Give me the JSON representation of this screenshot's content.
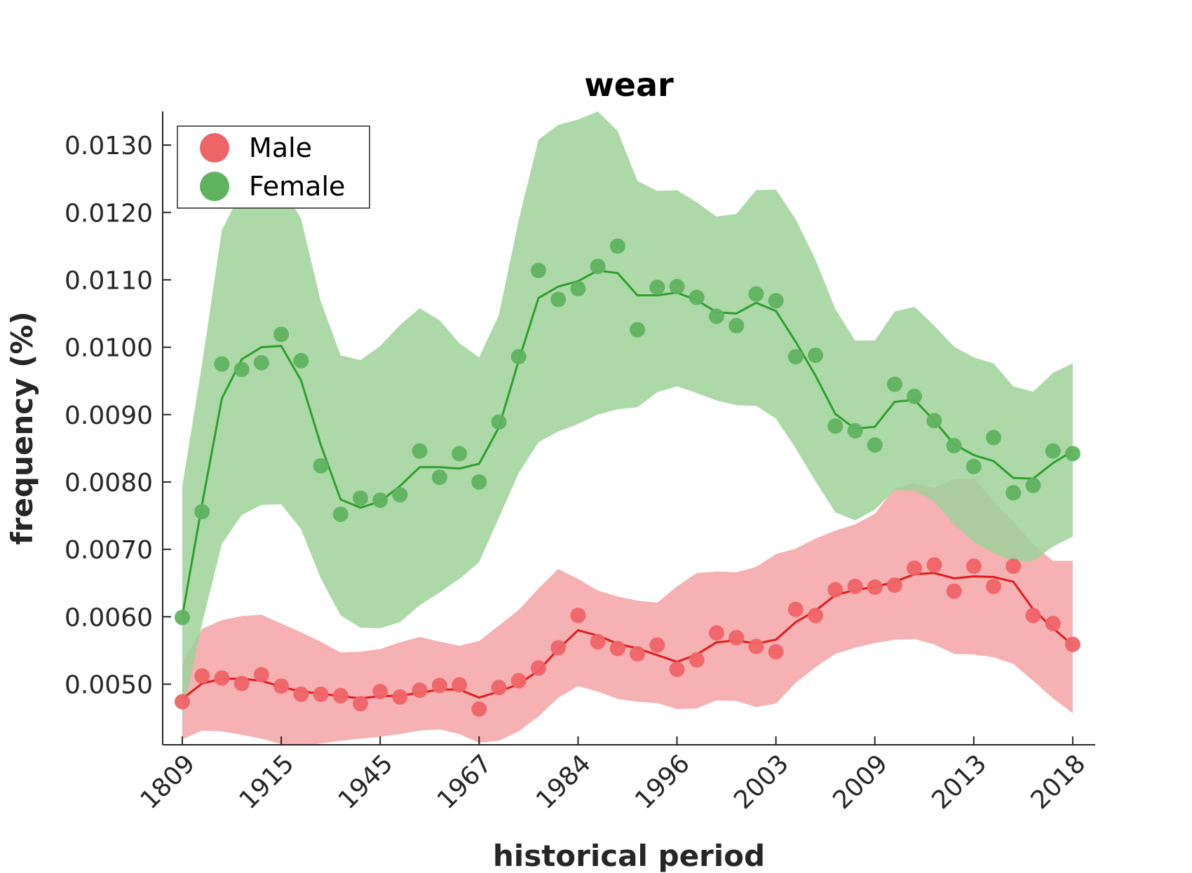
{
  "chart_data": {
    "type": "line",
    "title": "wear",
    "xlabel": "historical period",
    "ylabel": "frequency (%)",
    "ylim": [
      0.0041,
      0.0135
    ],
    "yticks": [
      "0.0050",
      "0.0060",
      "0.0070",
      "0.0080",
      "0.0090",
      "0.0100",
      "0.0110",
      "0.0120",
      "0.0130"
    ],
    "ytick_values": [
      0.005,
      0.006,
      0.007,
      0.008,
      0.009,
      0.01,
      0.011,
      0.012,
      0.013
    ],
    "xtick_labels": [
      "1809",
      "1915",
      "1945",
      "1967",
      "1984",
      "1996",
      "2003",
      "2009",
      "2013",
      "2018"
    ],
    "xtick_index": [
      0,
      5,
      10,
      15,
      20,
      25,
      30,
      35,
      40,
      45
    ],
    "n_points": 46,
    "legend_position": "top-left",
    "grid": false,
    "series": [
      {
        "name": "Male",
        "color": "#e41a1c",
        "marker_color": "#ef6467",
        "band_color": "#f4a3a4",
        "points": [
          0.00474,
          0.00512,
          0.00509,
          0.00501,
          0.00514,
          0.00497,
          0.00485,
          0.00485,
          0.00483,
          0.00471,
          0.00489,
          0.00481,
          0.00491,
          0.00498,
          0.00499,
          0.00463,
          0.00495,
          0.00505,
          0.00524,
          0.00554,
          0.00602,
          0.00563,
          0.00553,
          0.00545,
          0.00558,
          0.00522,
          0.00536,
          0.00576,
          0.00569,
          0.00556,
          0.00548,
          0.00611,
          0.00602,
          0.0064,
          0.00645,
          0.00644,
          0.00647,
          0.00672,
          0.00677,
          0.00638,
          0.00675,
          0.00645,
          0.00675,
          0.00602,
          0.0059,
          0.00559
        ],
        "smooth": [
          0.00478,
          0.00501,
          0.00508,
          0.00508,
          0.00505,
          0.00496,
          0.00489,
          0.00486,
          0.00482,
          0.00479,
          0.00482,
          0.00483,
          0.00487,
          0.00492,
          0.00492,
          0.0048,
          0.00489,
          0.005,
          0.0052,
          0.00552,
          0.0058,
          0.00572,
          0.0056,
          0.00553,
          0.00543,
          0.00533,
          0.00544,
          0.00562,
          0.00565,
          0.0056,
          0.00566,
          0.00592,
          0.00609,
          0.00632,
          0.0064,
          0.00644,
          0.00652,
          0.00663,
          0.00665,
          0.00657,
          0.0066,
          0.00659,
          0.00652,
          0.00611,
          0.00583,
          0.00558
        ],
        "lower": [
          0.00418,
          0.00431,
          0.0043,
          0.00425,
          0.00419,
          0.00411,
          0.00409,
          0.00412,
          0.00416,
          0.00419,
          0.00422,
          0.00426,
          0.00431,
          0.00433,
          0.00426,
          0.00413,
          0.00416,
          0.0043,
          0.00452,
          0.0048,
          0.00497,
          0.00489,
          0.00478,
          0.00474,
          0.00472,
          0.00463,
          0.00464,
          0.00476,
          0.00475,
          0.00466,
          0.00471,
          0.00502,
          0.00525,
          0.00545,
          0.00554,
          0.00561,
          0.00566,
          0.00567,
          0.00559,
          0.00545,
          0.00544,
          0.0054,
          0.0053,
          0.00505,
          0.00479,
          0.00457
        ],
        "upper": [
          0.00532,
          0.00582,
          0.00595,
          0.00601,
          0.00603,
          0.0059,
          0.00577,
          0.00563,
          0.00547,
          0.00548,
          0.00552,
          0.00562,
          0.0057,
          0.00563,
          0.00557,
          0.00564,
          0.00587,
          0.0061,
          0.00642,
          0.00671,
          0.00656,
          0.00639,
          0.0063,
          0.00624,
          0.00621,
          0.00645,
          0.00665,
          0.00667,
          0.00666,
          0.00674,
          0.00693,
          0.00701,
          0.00716,
          0.00728,
          0.00737,
          0.00753,
          0.00791,
          0.00798,
          0.00791,
          0.00804,
          0.00806,
          0.00772,
          0.00741,
          0.00708,
          0.00683,
          0.00683
        ]
      },
      {
        "name": "Female",
        "color": "#2ca02c",
        "marker_color": "#5fb35f",
        "band_color": "#9fd29a",
        "points": [
          0.00599,
          0.00756,
          0.00975,
          0.00967,
          0.00977,
          0.01019,
          0.0098,
          0.00824,
          0.00752,
          0.00776,
          0.00773,
          0.00781,
          0.00846,
          0.00807,
          0.00842,
          0.008,
          0.00889,
          0.00986,
          0.01114,
          0.01071,
          0.01087,
          0.0112,
          0.0115,
          0.01026,
          0.01089,
          0.0109,
          0.01074,
          0.01046,
          0.01032,
          0.01079,
          0.01069,
          0.00986,
          0.00988,
          0.00883,
          0.00876,
          0.00855,
          0.00945,
          0.00927,
          0.00891,
          0.00854,
          0.00823,
          0.00866,
          0.00784,
          0.00795,
          0.00846,
          0.00842
        ],
        "smooth": [
          0.00601,
          0.00767,
          0.00924,
          0.00982,
          0.01,
          0.01002,
          0.00951,
          0.00855,
          0.00774,
          0.00762,
          0.00771,
          0.00794,
          0.00822,
          0.00822,
          0.0082,
          0.00827,
          0.00881,
          0.0098,
          0.01073,
          0.0109,
          0.01098,
          0.01114,
          0.0111,
          0.01077,
          0.01077,
          0.01081,
          0.0107,
          0.01052,
          0.0105,
          0.01066,
          0.01054,
          0.01008,
          0.00958,
          0.00901,
          0.00879,
          0.00882,
          0.00919,
          0.00922,
          0.00891,
          0.00856,
          0.0084,
          0.00831,
          0.00806,
          0.00805,
          0.00828,
          0.00846
        ],
        "lower": [
          0.00451,
          0.0059,
          0.00708,
          0.00751,
          0.00766,
          0.00767,
          0.0073,
          0.00657,
          0.00602,
          0.00584,
          0.00583,
          0.00592,
          0.00617,
          0.00636,
          0.00656,
          0.00681,
          0.00747,
          0.00813,
          0.00859,
          0.00875,
          0.00886,
          0.009,
          0.00908,
          0.00911,
          0.00933,
          0.00942,
          0.00932,
          0.00921,
          0.00914,
          0.00913,
          0.00894,
          0.0085,
          0.00801,
          0.00755,
          0.00743,
          0.00759,
          0.00788,
          0.00787,
          0.00771,
          0.00737,
          0.00711,
          0.00695,
          0.00682,
          0.00683,
          0.00704,
          0.00719
        ],
        "upper": [
          0.00794,
          0.00975,
          0.01174,
          0.01232,
          0.01241,
          0.01241,
          0.01191,
          0.01068,
          0.00988,
          0.00981,
          0.01002,
          0.01033,
          0.01058,
          0.0104,
          0.01006,
          0.00985,
          0.01048,
          0.01188,
          0.01308,
          0.0133,
          0.01338,
          0.0135,
          0.01321,
          0.01247,
          0.01232,
          0.01233,
          0.01215,
          0.01194,
          0.01198,
          0.01233,
          0.01234,
          0.0119,
          0.0113,
          0.01057,
          0.0101,
          0.0101,
          0.01053,
          0.0106,
          0.01032,
          0.01001,
          0.00985,
          0.00976,
          0.00942,
          0.00934,
          0.00962,
          0.00976
        ]
      }
    ]
  }
}
